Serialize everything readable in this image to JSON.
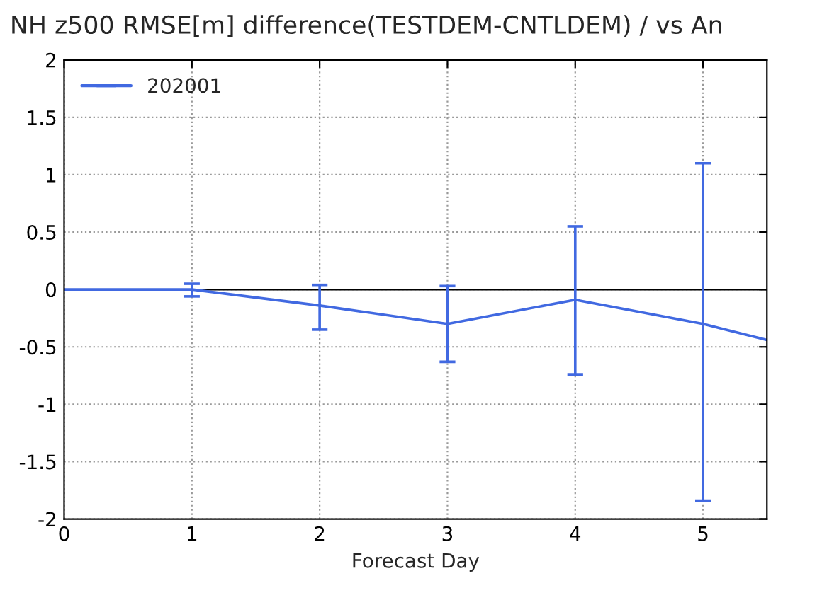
{
  "chart_data": {
    "type": "line",
    "title": "NH z500 RMSE[m] difference(TESTDEM-CNTLDEM) / vs An",
    "xlabel": "Forecast Day",
    "x": [
      0,
      1,
      2,
      3,
      4,
      5,
      5.5
    ],
    "series": [
      {
        "name": "202001",
        "color": "#4169e1",
        "values": [
          0,
          0,
          -0.14,
          -0.3,
          -0.09,
          -0.3,
          -0.44
        ],
        "errors": [
          null,
          [
            -0.06,
            0.05
          ],
          [
            -0.35,
            0.04
          ],
          [
            -0.63,
            0.03
          ],
          [
            -0.74,
            0.55
          ],
          [
            -1.84,
            1.1
          ],
          null
        ]
      }
    ],
    "xlim": [
      0,
      5.5
    ],
    "xticks": [
      0,
      1,
      2,
      3,
      4,
      5
    ],
    "ylim": [
      -2,
      2
    ],
    "yticks": [
      -2,
      -1.5,
      -1,
      -0.5,
      0,
      0.5,
      1,
      1.5,
      2
    ],
    "ref_lines": [
      {
        "axis": "y",
        "value": 0,
        "color": "#000000",
        "line_style": "solid"
      }
    ],
    "grid": true,
    "legend": "top left",
    "marker": "none",
    "line_style": "solid"
  }
}
